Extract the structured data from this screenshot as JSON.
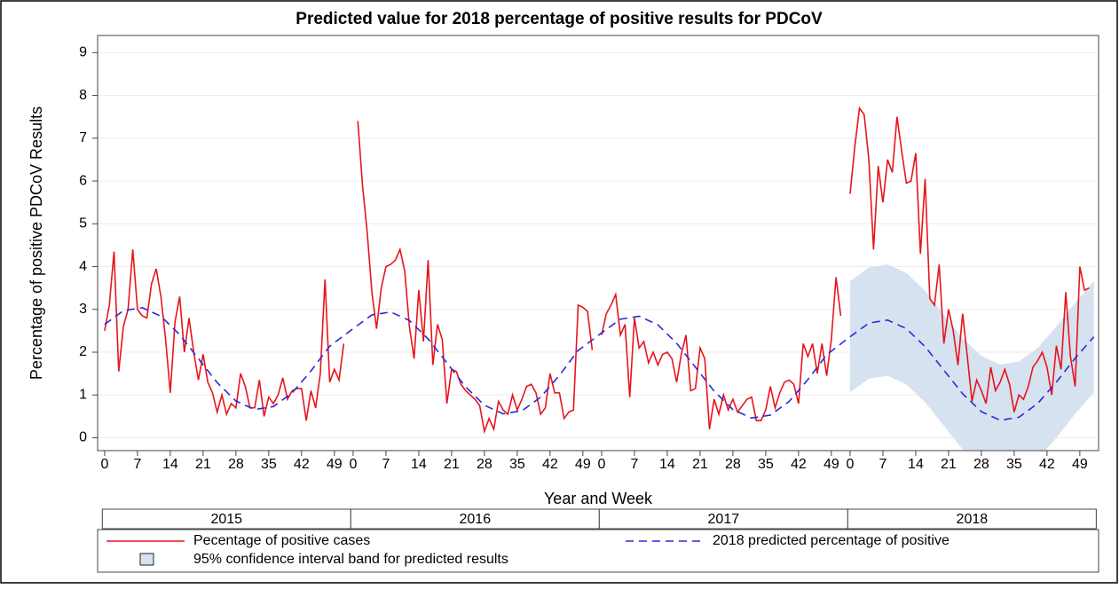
{
  "chart_data": {
    "type": "line",
    "title": "Predicted value for 2018 percentage of positive results for PDCoV",
    "x_label": "Year and Week",
    "y_label": "Percentage of positive PDCoV Results",
    "groups": [
      "2015",
      "2016",
      "2017",
      "2018"
    ],
    "group_size": 53,
    "xlim": [
      -1.5,
      212
    ],
    "ylim": [
      -0.3,
      9.4
    ],
    "yticks": [
      0,
      1,
      2,
      3,
      4,
      5,
      6,
      7,
      8,
      9
    ],
    "xticks": [
      0,
      7,
      14,
      21,
      28,
      35,
      42,
      49,
      {
        "value": 53,
        "label": "0"
      },
      {
        "value": 60,
        "label": "7"
      },
      {
        "value": 67,
        "label": "14"
      },
      {
        "value": 74,
        "label": "21"
      },
      {
        "value": 81,
        "label": "28"
      },
      {
        "value": 88,
        "label": "35"
      },
      {
        "value": 95,
        "label": "42"
      },
      {
        "value": 102,
        "label": "49"
      },
      {
        "value": 106,
        "label": "0"
      },
      {
        "value": 113,
        "label": "7"
      },
      {
        "value": 120,
        "label": "14"
      },
      {
        "value": 127,
        "label": "21"
      },
      {
        "value": 134,
        "label": "28"
      },
      {
        "value": 141,
        "label": "35"
      },
      {
        "value": 148,
        "label": "42"
      },
      {
        "value": 155,
        "label": "49"
      },
      {
        "value": 159,
        "label": "0"
      },
      {
        "value": 166,
        "label": "7"
      },
      {
        "value": 173,
        "label": "14"
      },
      {
        "value": 180,
        "label": "21"
      },
      {
        "value": 187,
        "label": "28"
      },
      {
        "value": 194,
        "label": "35"
      },
      {
        "value": 201,
        "label": "42"
      },
      {
        "value": 208,
        "label": "49"
      }
    ],
    "grid": true,
    "series": [
      {
        "name": "Pecentage of positive cases",
        "color": "#e8141c",
        "dash": false,
        "values": [
          2.5,
          3.1,
          4.35,
          1.55,
          2.6,
          3.0,
          4.4,
          3.0,
          2.85,
          2.8,
          3.6,
          3.95,
          3.3,
          2.3,
          1.05,
          2.7,
          3.3,
          2.0,
          2.8,
          2.0,
          1.35,
          1.95,
          1.3,
          1.05,
          0.6,
          1.0,
          0.55,
          0.8,
          0.7,
          1.5,
          1.2,
          0.7,
          0.7,
          1.35,
          0.5,
          0.95,
          0.8,
          1.0,
          1.4,
          0.9,
          1.1,
          1.15,
          1.15,
          0.4,
          1.1,
          0.7,
          1.5,
          3.7,
          1.3,
          1.6,
          1.35,
          2.2,
          null,
          null,
          7.4,
          5.9,
          4.8,
          3.4,
          2.55,
          3.5,
          4.0,
          4.05,
          4.15,
          4.4,
          3.9,
          2.6,
          1.85,
          3.45,
          2.25,
          4.15,
          1.7,
          2.65,
          2.3,
          0.8,
          1.6,
          1.55,
          1.25,
          1.1,
          1.0,
          0.9,
          0.75,
          0.15,
          0.45,
          0.2,
          0.85,
          0.65,
          0.55,
          1.0,
          0.65,
          0.9,
          1.2,
          1.25,
          1.05,
          0.55,
          0.7,
          1.5,
          1.05,
          1.05,
          0.45,
          0.6,
          0.65,
          3.1,
          3.05,
          2.95,
          2.05,
          null,
          2.4,
          2.9,
          3.1,
          3.35,
          2.4,
          2.65,
          0.95,
          2.8,
          2.1,
          2.25,
          1.75,
          2.0,
          1.7,
          1.95,
          2.0,
          1.85,
          1.3,
          1.95,
          2.4,
          1.1,
          1.15,
          2.1,
          1.85,
          0.2,
          0.9,
          0.55,
          1.0,
          0.65,
          0.9,
          0.6,
          0.75,
          0.9,
          0.95,
          0.4,
          0.4,
          0.65,
          1.2,
          0.7,
          1.05,
          1.3,
          1.35,
          1.25,
          0.8,
          2.2,
          1.9,
          2.2,
          1.5,
          2.2,
          1.45,
          2.3,
          3.75,
          2.85,
          null,
          5.7,
          6.8,
          7.7,
          7.55,
          6.5,
          4.4,
          6.35,
          5.5,
          6.5,
          6.2,
          7.5,
          6.7,
          5.95,
          6.0,
          6.65,
          4.3,
          6.05,
          3.25,
          3.1,
          4.05,
          2.2,
          3.0,
          2.5,
          1.7,
          2.9,
          1.9,
          0.85,
          1.35,
          1.1,
          0.8,
          1.65,
          1.1,
          1.3,
          1.6,
          1.25,
          0.6,
          1.0,
          0.9,
          1.2,
          1.65,
          1.8,
          2.0,
          1.65,
          1.0,
          2.15,
          1.6,
          3.4,
          1.9,
          1.2,
          4.0,
          3.45,
          3.5
        ]
      },
      {
        "name": "2018 predicted percentage of positive",
        "color": "#2a2ad8",
        "dash": true,
        "x": [
          0,
          4,
          8,
          12,
          16,
          20,
          24,
          28,
          32,
          36,
          40,
          44,
          48,
          53,
          57,
          61,
          65,
          69,
          73,
          77,
          81,
          85,
          89,
          93,
          97,
          101,
          106,
          110,
          114,
          118,
          122,
          126,
          130,
          134,
          138,
          142,
          146,
          150,
          154,
          159,
          163,
          167,
          171,
          175,
          179,
          183,
          187,
          191,
          195,
          199,
          203,
          207,
          211
        ],
        "values": [
          2.65,
          2.97,
          3.04,
          2.84,
          2.41,
          1.85,
          1.29,
          0.86,
          0.66,
          0.73,
          1.05,
          1.56,
          2.14,
          2.55,
          2.87,
          2.94,
          2.74,
          2.31,
          1.75,
          1.19,
          0.76,
          0.56,
          0.63,
          0.95,
          1.46,
          2.04,
          2.45,
          2.77,
          2.84,
          2.64,
          2.21,
          1.65,
          1.09,
          0.66,
          0.46,
          0.53,
          0.85,
          1.36,
          1.94,
          2.36,
          2.68,
          2.75,
          2.55,
          2.13,
          1.58,
          1.03,
          0.61,
          0.41,
          0.48,
          0.8,
          1.3,
          1.86,
          2.36
        ]
      }
    ],
    "band": {
      "name": "95% confidence interval band for predicted results",
      "color": "#d6e2f0",
      "x": [
        159,
        163,
        167,
        171,
        175,
        179,
        183,
        187,
        191,
        195,
        199,
        203,
        207,
        211
      ],
      "upper": [
        3.66,
        3.98,
        4.05,
        3.85,
        3.43,
        2.88,
        2.33,
        1.91,
        1.71,
        1.78,
        2.1,
        2.6,
        3.16,
        3.66
      ],
      "lower": [
        1.06,
        1.38,
        1.45,
        1.25,
        0.83,
        0.28,
        -0.27,
        -0.69,
        -0.89,
        -0.82,
        -0.5,
        0.0,
        0.56,
        1.06
      ]
    }
  }
}
